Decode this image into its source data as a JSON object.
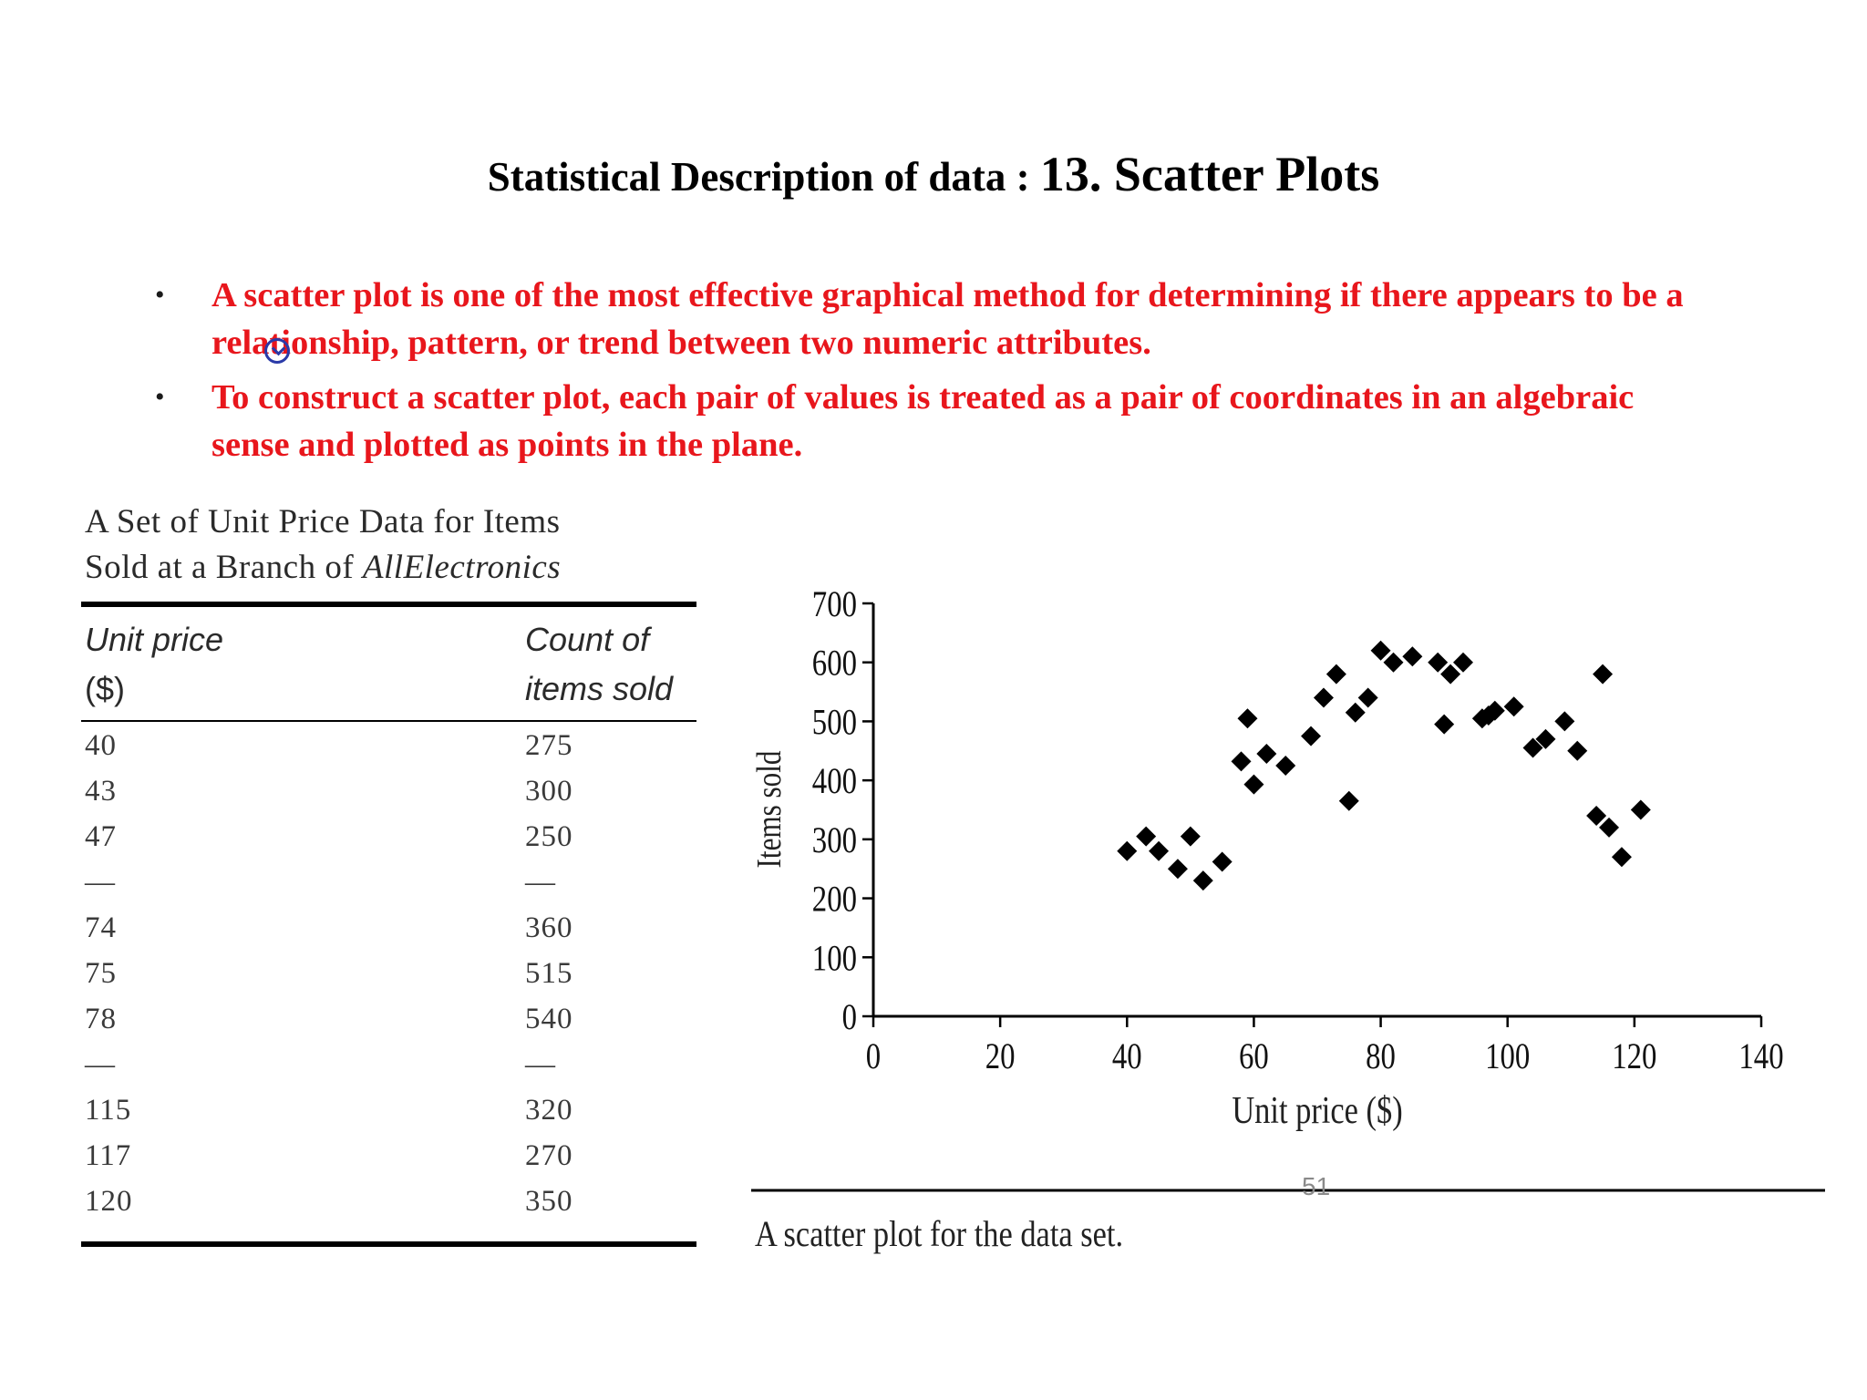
{
  "slide": {
    "title_part1": "Statistical Description of data : ",
    "title_part2": "13. Scatter Plots",
    "bullets": [
      "A scatter plot is one of the most effective graphical method for determining if  there appears to be a relationship, pattern, or trend between two numeric  attributes.",
      "To construct a scatter plot, each pair of values is treated as a pair of coordinates in an algebraic sense and plotted as points in the plane."
    ],
    "bullet_symbol": "•",
    "page_number": "51",
    "figure_caption": "A scatter plot for the  data set."
  },
  "table": {
    "caption_line1": "A Set of Unit Price Data for Items",
    "caption_line2_prefix": "Sold at a Branch of ",
    "caption_line2_italic": "AllElectronics",
    "col1_header_line1": "Unit price",
    "col1_header_line2": "($)",
    "col2_header_line1": "Count of",
    "col2_header_line2": "items sold",
    "rows": [
      [
        "40",
        "275"
      ],
      [
        "43",
        "300"
      ],
      [
        "47",
        "250"
      ],
      [
        "—",
        "—"
      ],
      [
        "74",
        "360"
      ],
      [
        "75",
        "515"
      ],
      [
        "78",
        "540"
      ],
      [
        "—",
        "—"
      ],
      [
        "115",
        "320"
      ],
      [
        "117",
        "270"
      ],
      [
        "120",
        "350"
      ]
    ]
  },
  "chart_data": {
    "type": "scatter",
    "title": "",
    "xlabel": "Unit price ($)",
    "ylabel": "Items sold",
    "xlim": [
      0,
      140
    ],
    "ylim": [
      0,
      700
    ],
    "xticks": [
      0,
      20,
      40,
      60,
      80,
      100,
      120,
      140
    ],
    "yticks": [
      0,
      100,
      200,
      300,
      400,
      500,
      600,
      700
    ],
    "grid": false,
    "marker": "diamond",
    "marker_color": "#000000",
    "points": [
      [
        40,
        280
      ],
      [
        43,
        305
      ],
      [
        45,
        280
      ],
      [
        48,
        250
      ],
      [
        50,
        305
      ],
      [
        52,
        230
      ],
      [
        55,
        262
      ],
      [
        58,
        432
      ],
      [
        59,
        505
      ],
      [
        60,
        393
      ],
      [
        62,
        445
      ],
      [
        65,
        425
      ],
      [
        69,
        475
      ],
      [
        71,
        540
      ],
      [
        73,
        580
      ],
      [
        75,
        365
      ],
      [
        76,
        515
      ],
      [
        78,
        540
      ],
      [
        80,
        620
      ],
      [
        82,
        600
      ],
      [
        85,
        610
      ],
      [
        89,
        600
      ],
      [
        90,
        495
      ],
      [
        91,
        580
      ],
      [
        93,
        600
      ],
      [
        96,
        505
      ],
      [
        97,
        510
      ],
      [
        98,
        518
      ],
      [
        101,
        525
      ],
      [
        104,
        455
      ],
      [
        106,
        470
      ],
      [
        109,
        500
      ],
      [
        111,
        450
      ],
      [
        114,
        340
      ],
      [
        115,
        580
      ],
      [
        116,
        320
      ],
      [
        118,
        270
      ],
      [
        121,
        350
      ]
    ]
  }
}
